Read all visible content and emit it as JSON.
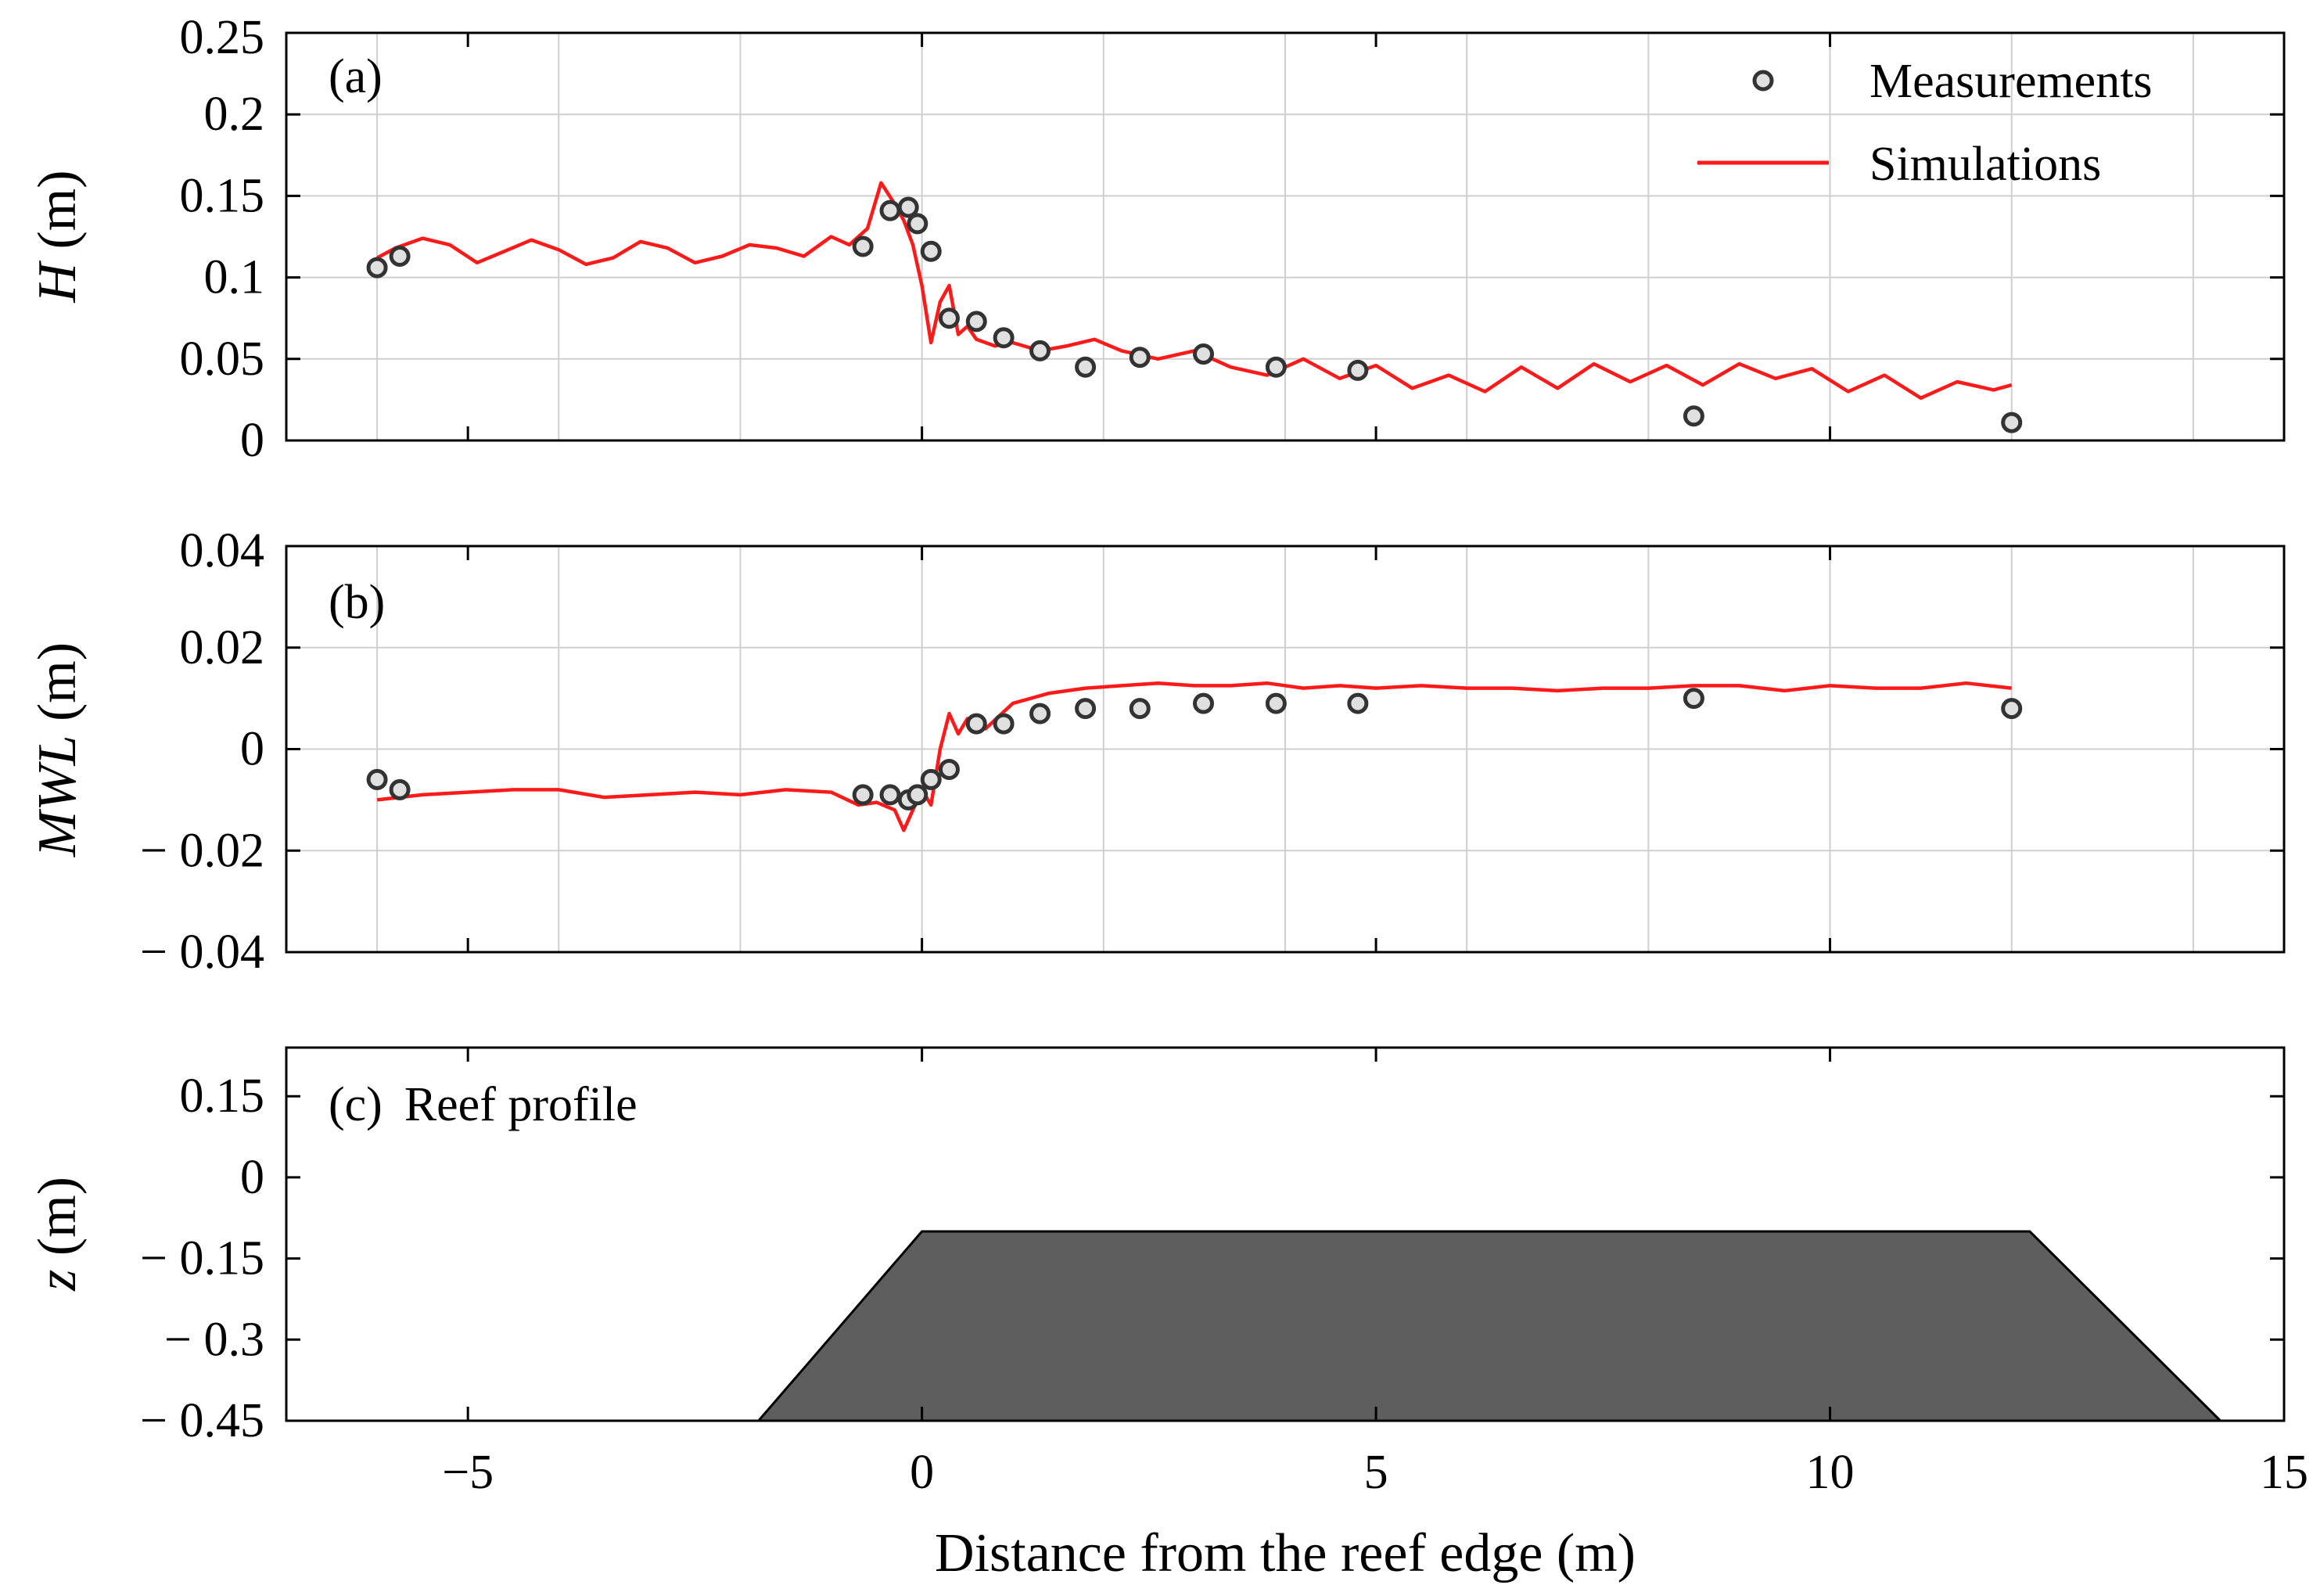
{
  "chart_data": [
    {
      "type": "line",
      "panel_label": "(a)",
      "ylabel_symbol": "H",
      "ylabel_unit": " (m)",
      "xlim": [
        -7,
        15
      ],
      "ylim": [
        0,
        0.25
      ],
      "yticks": [
        "0",
        "0.05",
        "0.1",
        "0.15",
        "0.2",
        "0.25"
      ],
      "grid": true,
      "legend": {
        "position": "top-right",
        "entries": [
          "Measurements",
          "Simulations"
        ]
      },
      "series": [
        {
          "name": "Measurements",
          "kind": "scatter",
          "x": [
            -6.0,
            -5.75,
            -0.65,
            -0.35,
            -0.15,
            -0.05,
            0.1,
            0.3,
            0.6,
            0.9,
            1.3,
            1.8,
            2.4,
            3.1,
            3.9,
            4.8,
            8.5,
            12.0
          ],
          "y": [
            0.106,
            0.113,
            0.119,
            0.141,
            0.143,
            0.133,
            0.116,
            0.075,
            0.073,
            0.063,
            0.055,
            0.045,
            0.051,
            0.053,
            0.045,
            0.043,
            0.015,
            0.011
          ]
        },
        {
          "name": "Simulations",
          "kind": "line",
          "x": [
            -6.0,
            -5.8,
            -5.5,
            -5.2,
            -4.9,
            -4.6,
            -4.3,
            -4.0,
            -3.7,
            -3.4,
            -3.1,
            -2.8,
            -2.5,
            -2.2,
            -1.9,
            -1.6,
            -1.3,
            -1.0,
            -0.8,
            -0.6,
            -0.45,
            -0.3,
            -0.2,
            -0.1,
            0.0,
            0.1,
            0.2,
            0.3,
            0.4,
            0.5,
            0.6,
            0.8,
            1.0,
            1.3,
            1.6,
            1.9,
            2.2,
            2.6,
            3.0,
            3.4,
            3.8,
            4.2,
            4.6,
            5.0,
            5.4,
            5.8,
            6.2,
            6.6,
            7.0,
            7.4,
            7.8,
            8.2,
            8.6,
            9.0,
            9.4,
            9.8,
            10.2,
            10.6,
            11.0,
            11.4,
            11.8,
            12.0
          ],
          "y": [
            0.112,
            0.118,
            0.124,
            0.12,
            0.109,
            0.116,
            0.123,
            0.117,
            0.108,
            0.112,
            0.122,
            0.118,
            0.109,
            0.113,
            0.12,
            0.118,
            0.113,
            0.125,
            0.12,
            0.13,
            0.158,
            0.145,
            0.135,
            0.12,
            0.095,
            0.06,
            0.085,
            0.095,
            0.065,
            0.07,
            0.062,
            0.058,
            0.06,
            0.055,
            0.058,
            0.062,
            0.055,
            0.05,
            0.055,
            0.045,
            0.04,
            0.05,
            0.038,
            0.046,
            0.032,
            0.04,
            0.03,
            0.045,
            0.032,
            0.047,
            0.036,
            0.046,
            0.034,
            0.047,
            0.038,
            0.044,
            0.03,
            0.04,
            0.026,
            0.036,
            0.031,
            0.034
          ]
        }
      ]
    },
    {
      "type": "line",
      "panel_label": "(b)",
      "ylabel_symbol": "MWL",
      "ylabel_unit": " (m)",
      "xlim": [
        -7,
        15
      ],
      "ylim": [
        -0.04,
        0.04
      ],
      "yticks": [
        "− 0.04",
        "− 0.02",
        "0",
        "0.02",
        "0.04"
      ],
      "grid": true,
      "series": [
        {
          "name": "Measurements",
          "kind": "scatter",
          "x": [
            -6.0,
            -5.75,
            -0.65,
            -0.35,
            -0.15,
            -0.05,
            0.1,
            0.3,
            0.6,
            0.9,
            1.3,
            1.8,
            2.4,
            3.1,
            3.9,
            4.8,
            8.5,
            12.0
          ],
          "y": [
            -0.006,
            -0.008,
            -0.009,
            -0.009,
            -0.01,
            -0.009,
            -0.006,
            -0.004,
            0.005,
            0.005,
            0.007,
            0.008,
            0.008,
            0.009,
            0.009,
            0.009,
            0.01,
            0.008
          ]
        },
        {
          "name": "Simulations",
          "kind": "line",
          "x": [
            -6.0,
            -5.5,
            -5.0,
            -4.5,
            -4.0,
            -3.5,
            -3.0,
            -2.5,
            -2.0,
            -1.5,
            -1.0,
            -0.7,
            -0.5,
            -0.3,
            -0.2,
            -0.1,
            0.0,
            0.1,
            0.2,
            0.3,
            0.4,
            0.5,
            0.7,
            1.0,
            1.4,
            1.8,
            2.2,
            2.6,
            3.0,
            3.4,
            3.8,
            4.2,
            4.6,
            5.0,
            5.5,
            6.0,
            6.5,
            7.0,
            7.5,
            8.0,
            8.5,
            9.0,
            9.5,
            10.0,
            10.5,
            11.0,
            11.5,
            12.0
          ],
          "y": [
            -0.01,
            -0.009,
            -0.0085,
            -0.008,
            -0.008,
            -0.0095,
            -0.009,
            -0.0085,
            -0.009,
            -0.008,
            -0.0085,
            -0.011,
            -0.0105,
            -0.012,
            -0.016,
            -0.012,
            -0.008,
            -0.011,
            0.0,
            0.007,
            0.003,
            0.006,
            0.004,
            0.009,
            0.011,
            0.012,
            0.0125,
            0.013,
            0.0125,
            0.0125,
            0.013,
            0.012,
            0.0125,
            0.012,
            0.0125,
            0.012,
            0.012,
            0.0115,
            0.012,
            0.012,
            0.0125,
            0.0125,
            0.0115,
            0.0125,
            0.012,
            0.012,
            0.013,
            0.012
          ]
        }
      ]
    },
    {
      "type": "area",
      "panel_label": "(c)",
      "panel_title": "Reef profile",
      "ylabel_symbol": "z",
      "ylabel_unit": " (m)",
      "xlabel": "Distance from the reef edge (m)",
      "xlim": [
        -7,
        15
      ],
      "ylim": [
        -0.45,
        0.24
      ],
      "xtick_values": [
        -5,
        0,
        5,
        10,
        15
      ],
      "xticks": [
        "−5",
        "0",
        "5",
        "10",
        "15"
      ],
      "yticks": [
        "− 0.45",
        "− 0.3",
        "− 0.15",
        "0",
        "0.15"
      ],
      "grid": false,
      "series": [
        {
          "name": "Reef profile",
          "kind": "polygon",
          "x": [
            -1.8,
            0.0,
            12.2,
            14.3
          ],
          "y": [
            -0.45,
            -0.1,
            -0.1,
            -0.45
          ]
        }
      ]
    }
  ],
  "colors": {
    "simulation": "#ff1a1a",
    "measurement_edge": "#333333",
    "measurement_fill": "#e0e0e0",
    "reef_fill": "#5e5e5e",
    "grid": "#cfcfcf",
    "axis": "#000000"
  }
}
